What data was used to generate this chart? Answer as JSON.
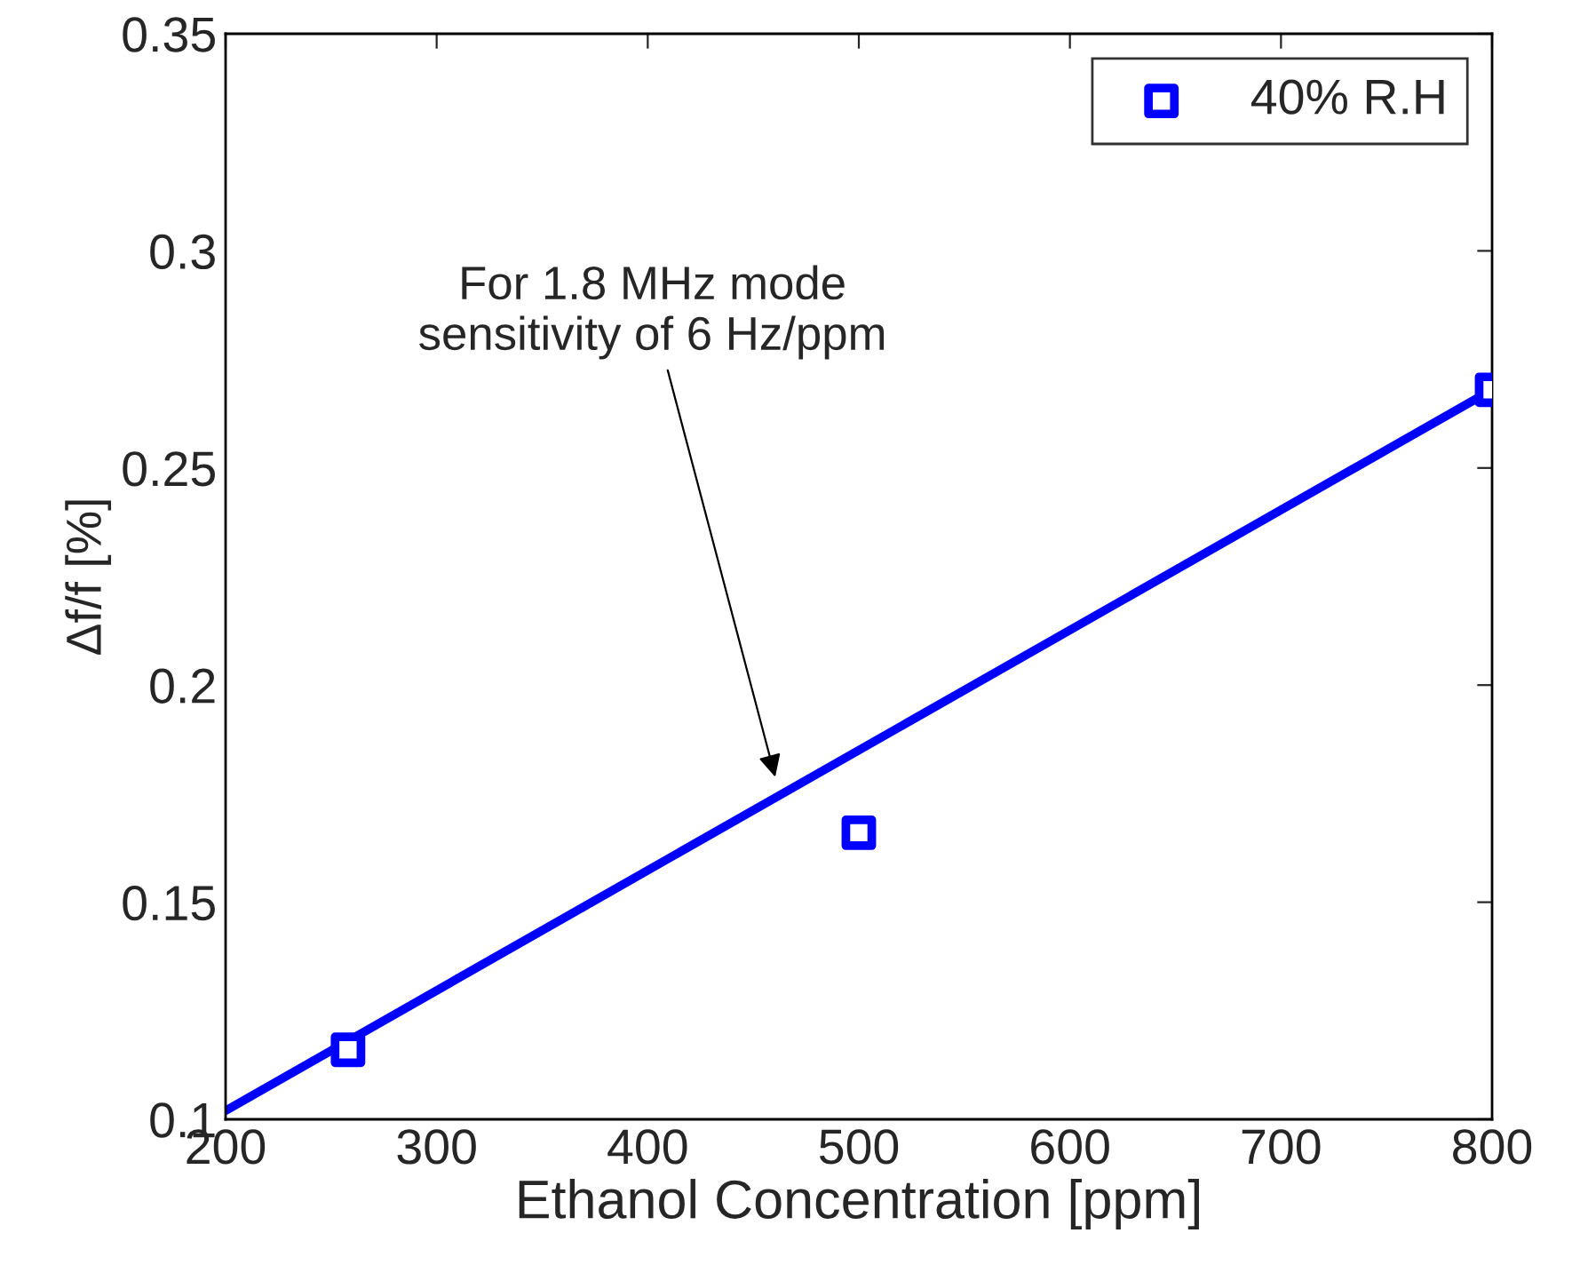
{
  "chart_data": {
    "type": "scatter",
    "xlabel": "Ethanol Concentration [ppm]",
    "ylabel": "Δf/f [%]",
    "xlim": [
      200,
      800
    ],
    "xticks": [
      200,
      300,
      400,
      500,
      600,
      700,
      800
    ],
    "ylim": [
      0.1,
      0.35
    ],
    "yticks": [
      0.1,
      0.15,
      0.2,
      0.25,
      0.3,
      0.35
    ],
    "grid": false,
    "legend": "top right",
    "series": [
      {
        "name": "40% R.H",
        "marker": "square",
        "color": "#0000ff",
        "x": [
          258,
          500,
          800
        ],
        "values": [
          0.116,
          0.166,
          0.268
        ]
      },
      {
        "type": "line",
        "color": "#0000ff",
        "x": [
          200,
          800
        ],
        "values": [
          0.102,
          0.268
        ],
        "line_style": "solid",
        "marker": "none"
      }
    ],
    "annotations": [
      "For 1.8 MHz mode\nsensitivity of 6 Hz/ppm"
    ]
  }
}
